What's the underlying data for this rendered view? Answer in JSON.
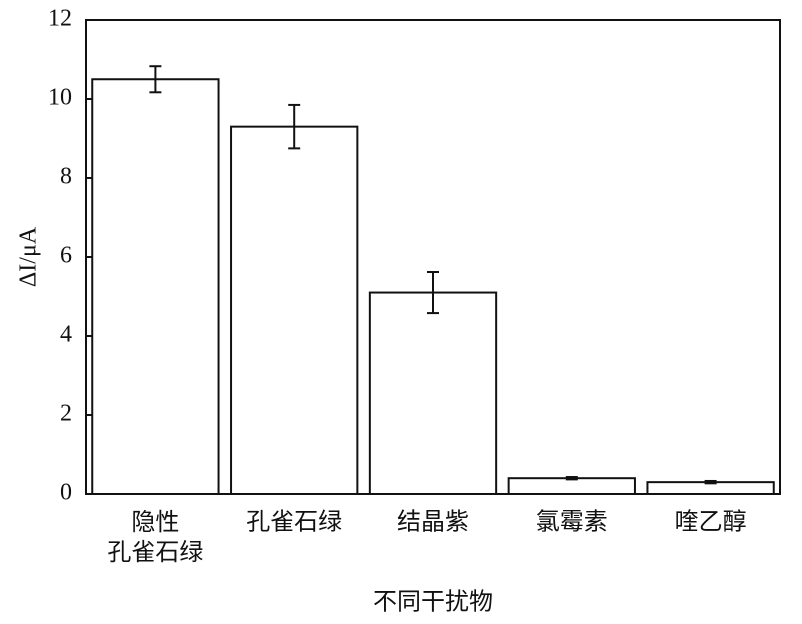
{
  "chart_data": {
    "type": "bar",
    "y_label": "ΔI/μA",
    "x_label": "不同干扰物",
    "categories": [
      "隐性\n孔雀石绿",
      "孔雀石绿",
      "结晶紫",
      "氯霉素",
      "喹乙醇"
    ],
    "values": [
      10.5,
      9.3,
      5.1,
      0.4,
      0.3
    ],
    "errors": [
      0.33,
      0.55,
      0.52,
      0.03,
      0.03
    ],
    "color": "#ffffff",
    "ylim": [
      0,
      12
    ],
    "yticks": [
      0,
      2,
      4,
      6,
      8,
      10,
      12
    ],
    "grid": false
  }
}
